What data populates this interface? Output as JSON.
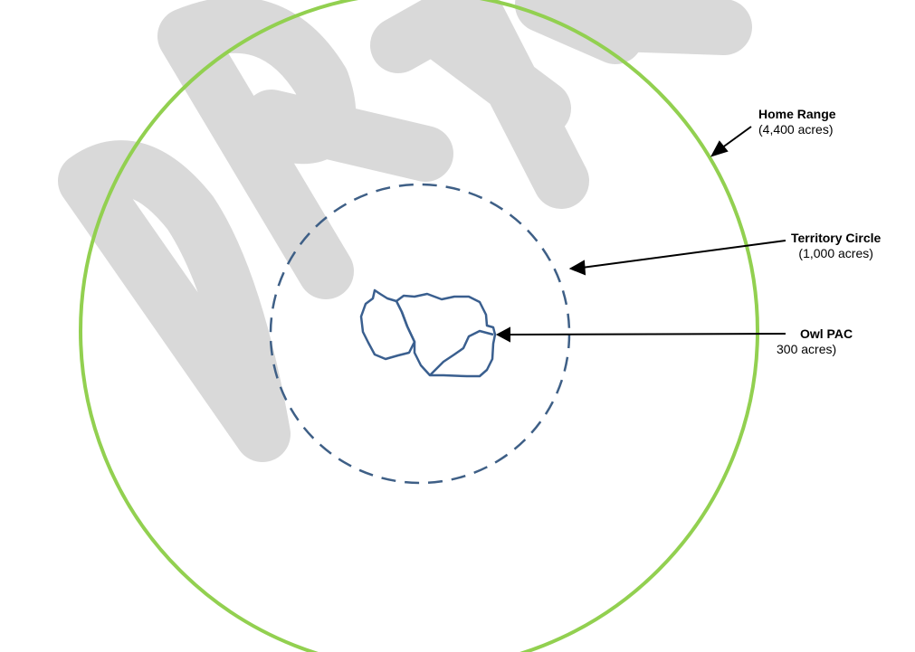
{
  "watermark": {
    "text": "DRAFT",
    "color": "#d9d9d9"
  },
  "colors": {
    "home_range": "#92d050",
    "territory_circle": "#3e5f86",
    "owl_pac": "#3a5f8f",
    "arrow": "#000000"
  },
  "home_range": {
    "title": "Home Range",
    "area": "(4,400 acres)"
  },
  "territory_circle": {
    "title": "Territory Circle",
    "area": "(1,000 acres)"
  },
  "owl_pac": {
    "title": "Owl PAC",
    "area": "300 acres)"
  }
}
